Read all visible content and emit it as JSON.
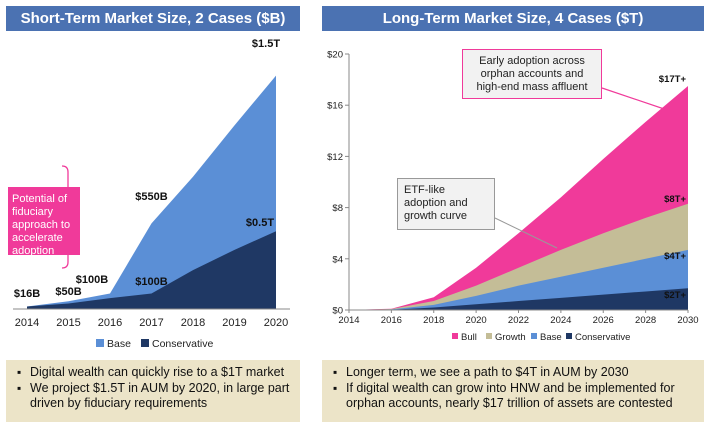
{
  "left_panel": {
    "title": "Short-Term Market Size, 2 Cases ($B)",
    "callout": "Potential of fiduciary approach to accelerate adoption",
    "bullets": [
      "Digital wealth can quickly rise to a $1T market",
      "We project $1.5T in AUM by 2020, in large part driven by fiduciary requirements"
    ]
  },
  "right_panel": {
    "title": "Long-Term Market Size, 4 Cases ($T)",
    "callout_top": "Early adoption across orphan accounts and high-end mass affluent",
    "callout_mid": "ETF-like adoption and growth curve",
    "bullets": [
      "Longer term, we see a path to $4T in AUM by 2030",
      "If digital wealth can grow into HNW and be implemented for orphan accounts, nearly $17 trillion of assets are contested"
    ]
  },
  "chart_data": [
    {
      "type": "area",
      "title": "Short-Term Market Size, 2 Cases ($B)",
      "x": [
        2014,
        2015,
        2016,
        2017,
        2018,
        2019,
        2020
      ],
      "series": [
        {
          "name": "Base",
          "color": "#5b8fd6",
          "values": [
            16,
            50,
            100,
            550,
            850,
            1180,
            1500
          ]
        },
        {
          "name": "Conservative",
          "color": "#1f3864",
          "values": [
            16,
            35,
            70,
            100,
            250,
            380,
            500
          ]
        }
      ],
      "data_labels": [
        {
          "text": "$16B",
          "x": 2014
        },
        {
          "text": "$50B",
          "x": 2015
        },
        {
          "text": "$100B",
          "x": 2016
        },
        {
          "text": "$550B",
          "x": 2017
        },
        {
          "text": "$100B",
          "x": 2017
        },
        {
          "text": "$0.5T",
          "x": 2020
        },
        {
          "text": "$1.5T",
          "x": 2020
        }
      ],
      "ylim": [
        0,
        1600
      ],
      "legend": "bottom"
    },
    {
      "type": "area",
      "title": "Long-Term Market Size, 4 Cases ($T)",
      "x": [
        2014,
        2016,
        2018,
        2020,
        2022,
        2024,
        2026,
        2028,
        2030
      ],
      "x_ticks": [
        "2014",
        "2016",
        "2018",
        "2020",
        "2022",
        "2024",
        "2026",
        "2028",
        "2030"
      ],
      "y_ticks": [
        "$0",
        "$4",
        "$8",
        "$12",
        "$16",
        "$20"
      ],
      "ylim": [
        0,
        20
      ],
      "series": [
        {
          "name": "Bull",
          "color": "#f03a9a",
          "values": [
            0,
            0.1,
            1.0,
            3.3,
            6.0,
            8.8,
            11.8,
            14.7,
            17.5
          ]
        },
        {
          "name": "Growth",
          "color": "#c4bd97",
          "values": [
            0,
            0.08,
            0.7,
            1.9,
            3.3,
            4.7,
            6.0,
            7.2,
            8.3
          ]
        },
        {
          "name": "Base",
          "color": "#5b8fd6",
          "values": [
            0,
            0.05,
            0.4,
            1.1,
            1.9,
            2.6,
            3.3,
            4.0,
            4.7
          ]
        },
        {
          "name": "Conservative",
          "color": "#1f3864",
          "values": [
            0,
            0.02,
            0.2,
            0.45,
            0.7,
            0.95,
            1.2,
            1.45,
            1.7
          ]
        }
      ],
      "data_labels": [
        "$17T+",
        "$8T+",
        "$4T+",
        "$2T+"
      ],
      "legend": "bottom"
    }
  ]
}
